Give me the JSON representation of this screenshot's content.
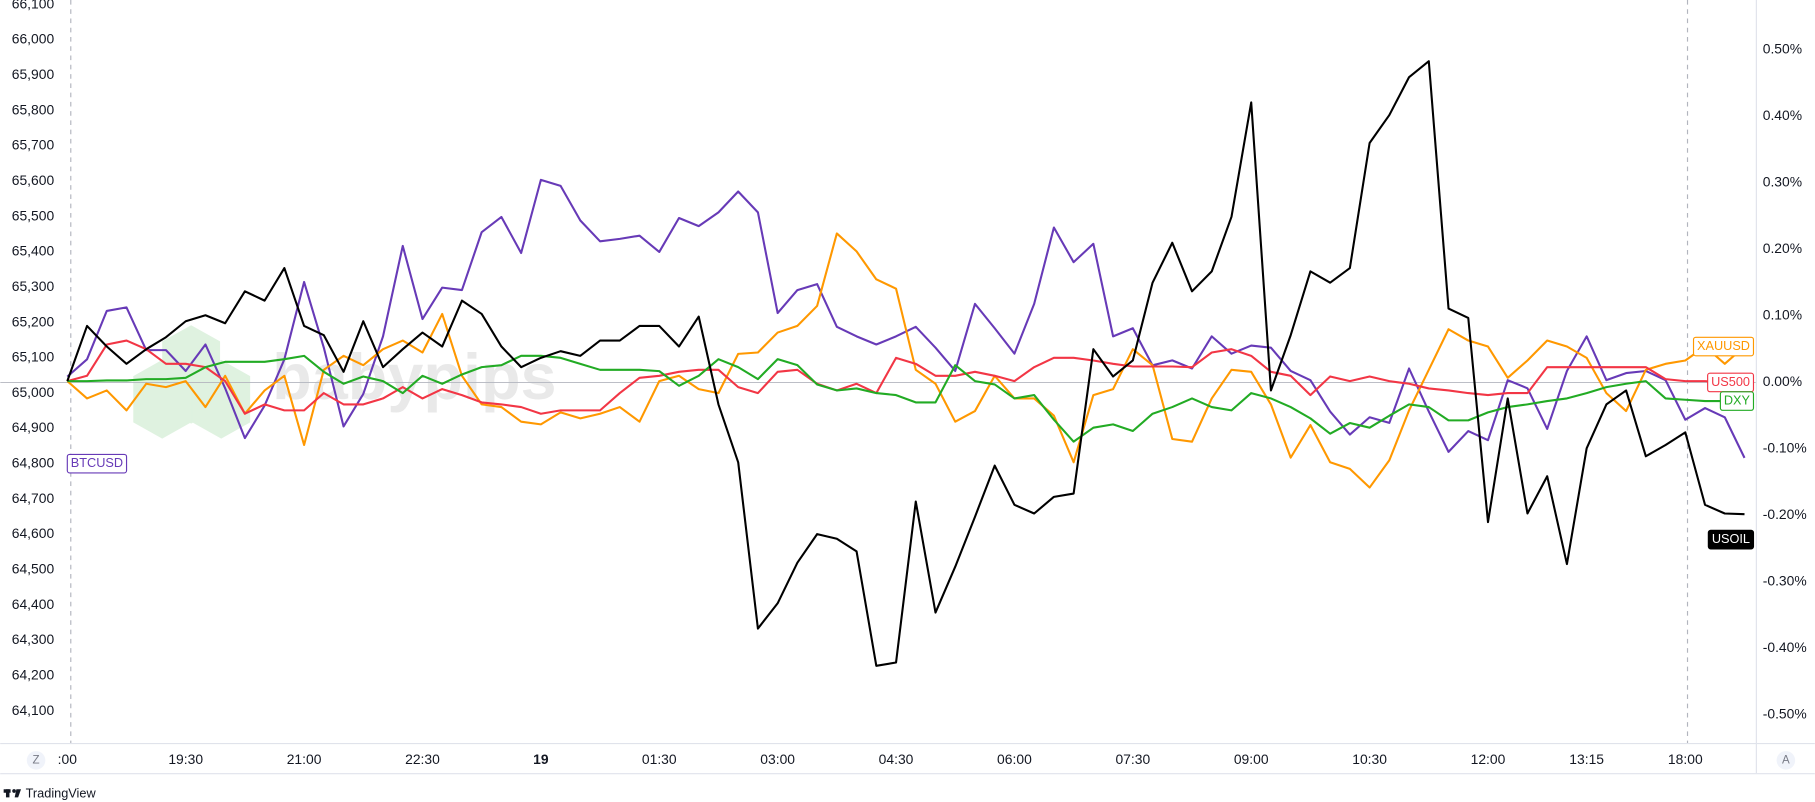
{
  "chart_data": {
    "type": "line",
    "categories": [
      ":00",
      null,
      null,
      null,
      null,
      null,
      "19:30",
      null,
      null,
      null,
      null,
      null,
      "21:00",
      null,
      null,
      null,
      null,
      null,
      "22:30",
      null,
      null,
      null,
      null,
      null,
      "19",
      null,
      null,
      null,
      null,
      null,
      "01:30",
      null,
      null,
      null,
      null,
      null,
      "03:00",
      null,
      null,
      null,
      null,
      null,
      "04:30",
      null,
      null,
      null,
      null,
      null,
      "06:00",
      null,
      null,
      null,
      null,
      null,
      "07:30",
      null,
      null,
      null,
      null,
      null,
      "09:00",
      null,
      null,
      null,
      null,
      null,
      "10:30",
      null,
      null,
      null,
      null,
      null,
      "12:00",
      null,
      null,
      null,
      null,
      "13:15",
      null,
      null,
      null,
      null,
      "18:00",
      null,
      null,
      null
    ],
    "ylim": [
      64010,
      66100
    ],
    "yticks": [
      {
        "value": 64100,
        "label": "64,100"
      },
      {
        "value": 64200,
        "label": "64,200"
      },
      {
        "value": 64300,
        "label": "64,300"
      },
      {
        "value": 64400,
        "label": "64,400"
      },
      {
        "value": 64500,
        "label": "64,500"
      },
      {
        "value": 64600,
        "label": "64,600"
      },
      {
        "value": 64700,
        "label": "64,700"
      },
      {
        "value": 64800,
        "label": "64,800"
      },
      {
        "value": 64900,
        "label": "64,900"
      },
      {
        "value": 65000,
        "label": "65,000"
      },
      {
        "value": 65100,
        "label": "65,100"
      },
      {
        "value": 65200,
        "label": "65,200"
      },
      {
        "value": 65300,
        "label": "65,300"
      },
      {
        "value": 65400,
        "label": "65,400"
      },
      {
        "value": 65500,
        "label": "65,500"
      },
      {
        "value": 65600,
        "label": "65,600"
      },
      {
        "value": 65700,
        "label": "65,700"
      },
      {
        "value": 65800,
        "label": "65,800"
      },
      {
        "value": 65900,
        "label": "65,900"
      },
      {
        "value": 66000,
        "label": "66,000"
      },
      {
        "value": 66100,
        "label": "66,100"
      }
    ],
    "y2lim": [
      -0.542,
      0.568
    ],
    "y2ticks": [
      {
        "value": 0.5,
        "label": "0.50%"
      },
      {
        "value": 0.4,
        "label": "0.40%"
      },
      {
        "value": 0.3,
        "label": "0.30%"
      },
      {
        "value": 0.2,
        "label": "0.20%"
      },
      {
        "value": 0.1,
        "label": "0.10%"
      },
      {
        "value": 0,
        "label": "0.00%"
      },
      {
        "value": -0.1,
        "label": "-0.10%"
      },
      {
        "value": -0.2,
        "label": "-0.20%"
      },
      {
        "value": -0.3,
        "label": "-0.30%"
      },
      {
        "value": -0.4,
        "label": "-0.40%"
      },
      {
        "value": -0.5,
        "label": "-0.50%"
      }
    ],
    "grid": false,
    "series": [
      {
        "name": "BTCUSD",
        "color": "#673ab7",
        "values": [
          65047,
          65096,
          65233,
          65243,
          65122,
          65122,
          65063,
          65138,
          65014,
          64873,
          64965,
          65096,
          65315,
          65129,
          64906,
          64998,
          65161,
          65417,
          65210,
          65299,
          65292,
          65456,
          65499,
          65397,
          65604,
          65587,
          65489,
          65430,
          65437,
          65446,
          65400,
          65496,
          65473,
          65512,
          65571,
          65512,
          65227,
          65292,
          65309,
          65188,
          65161,
          65138,
          65161,
          65188,
          65129,
          65063,
          65253,
          65184,
          65112,
          65253,
          65469,
          65371,
          65423,
          65161,
          65184,
          65079,
          65093,
          65070,
          65161,
          65112,
          65135,
          65129,
          65063,
          65037,
          64948,
          64883,
          64932,
          64916,
          65070,
          64948,
          64834,
          64893,
          64867,
          65037,
          65014,
          64899,
          65063,
          65161,
          65037,
          65057,
          65063,
          65037,
          64925,
          64958,
          64932,
          64817
        ]
      },
      {
        "name": "XAUUSD",
        "color": "#ff9800",
        "axis": "y2",
        "values": [
          0.002,
          -0.024,
          -0.012,
          -0.042,
          -0.002,
          -0.007,
          0.002,
          -0.037,
          0.01,
          -0.047,
          -0.012,
          0.01,
          -0.094,
          0.019,
          0.04,
          0.026,
          0.05,
          0.063,
          0.045,
          0.103,
          0.01,
          -0.033,
          -0.037,
          -0.059,
          -0.063,
          -0.045,
          -0.054,
          -0.047,
          -0.037,
          -0.059,
          0.002,
          0.01,
          -0.01,
          -0.016,
          0.043,
          0.045,
          0.075,
          0.085,
          0.115,
          0.224,
          0.197,
          0.155,
          0.141,
          0.019,
          -0.002,
          -0.059,
          -0.043,
          0.01,
          -0.024,
          -0.024,
          -0.05,
          -0.12,
          -0.019,
          -0.01,
          0.05,
          0.026,
          -0.085,
          -0.089,
          -0.024,
          0.019,
          0.016,
          -0.033,
          -0.113,
          -0.064,
          -0.12,
          -0.13,
          -0.158,
          -0.117,
          -0.042,
          0.019,
          0.08,
          0.063,
          0.054,
          0.007,
          0.033,
          0.063,
          0.054,
          0.037,
          -0.016,
          -0.043,
          0.019,
          0.028,
          0.033,
          0.054,
          0.028,
          0.054
        ]
      },
      {
        "name": "US500",
        "color": "#f23645",
        "axis": "y2",
        "values": [
          0.002,
          0.01,
          0.057,
          0.063,
          0.05,
          0.028,
          0.028,
          0.023,
          0.002,
          -0.047,
          -0.033,
          -0.042,
          -0.042,
          -0.016,
          -0.033,
          -0.033,
          -0.024,
          -0.007,
          -0.024,
          -0.01,
          -0.019,
          -0.03,
          -0.033,
          -0.037,
          -0.047,
          -0.042,
          -0.042,
          -0.042,
          -0.016,
          0.007,
          0.01,
          0.016,
          0.019,
          0.019,
          -0.007,
          -0.016,
          0.016,
          0.019,
          -0.002,
          -0.012,
          -0.002,
          -0.016,
          0.037,
          0.028,
          0.01,
          0.01,
          0.016,
          0.01,
          0.002,
          0.023,
          0.037,
          0.037,
          0.033,
          0.028,
          0.024,
          0.024,
          0.024,
          0.023,
          0.045,
          0.05,
          0.04,
          0.016,
          0.01,
          -0.019,
          0.009,
          0.002,
          0.009,
          0.002,
          -0.002,
          -0.009,
          -0.012,
          -0.016,
          -0.019,
          -0.016,
          -0.016,
          0.023,
          0.023,
          0.023,
          0.023,
          0.023,
          0.023,
          0.005,
          0.002,
          0.002,
          0,
          0
        ]
      },
      {
        "name": "DXY",
        "color": "#22ab24",
        "axis": "y2",
        "values": [
          0.002,
          0.002,
          0.003,
          0.003,
          0.005,
          0.005,
          0.007,
          0.023,
          0.031,
          0.031,
          0.031,
          0.035,
          0.04,
          0.016,
          -0.002,
          0.009,
          0.002,
          -0.016,
          0.01,
          -0.002,
          0.012,
          0.023,
          0.026,
          0.04,
          0.04,
          0.037,
          0.028,
          0.019,
          0.019,
          0.019,
          0.017,
          -0.005,
          0.01,
          0.035,
          0.023,
          0.005,
          0.035,
          0.026,
          -0.003,
          -0.012,
          -0.009,
          -0.016,
          -0.019,
          -0.03,
          -0.03,
          0.026,
          0.002,
          -0.003,
          -0.024,
          -0.019,
          -0.056,
          -0.089,
          -0.068,
          -0.063,
          -0.073,
          -0.047,
          -0.037,
          -0.024,
          -0.037,
          -0.042,
          -0.016,
          -0.024,
          -0.037,
          -0.054,
          -0.077,
          -0.061,
          -0.068,
          -0.05,
          -0.033,
          -0.037,
          -0.057,
          -0.057,
          -0.045,
          -0.037,
          -0.033,
          -0.028,
          -0.024,
          -0.016,
          -0.007,
          -0.002,
          0.002,
          -0.024,
          -0.026,
          -0.028,
          -0.028,
          -0.028
        ]
      },
      {
        "name": "USOIL",
        "color": "#000000",
        "axis": "y2",
        "values": [
          0.002,
          0.085,
          0.054,
          0.028,
          0.05,
          0.068,
          0.092,
          0.101,
          0.089,
          0.137,
          0.123,
          0.172,
          0.085,
          0.071,
          0.016,
          0.092,
          0.023,
          0.05,
          0.075,
          0.054,
          0.123,
          0.103,
          0.054,
          0.023,
          0.037,
          0.047,
          0.04,
          0.063,
          0.063,
          0.085,
          0.085,
          0.054,
          0.099,
          -0.033,
          -0.12,
          -0.37,
          -0.332,
          -0.271,
          -0.228,
          -0.235,
          -0.254,
          -0.426,
          -0.421,
          -0.179,
          -0.346,
          -0.277,
          -0.202,
          -0.125,
          -0.184,
          -0.197,
          -0.172,
          -0.167,
          0.05,
          0.009,
          0.033,
          0.15,
          0.21,
          0.137,
          0.167,
          0.249,
          0.421,
          -0.012,
          0.071,
          0.167,
          0.15,
          0.172,
          0.36,
          0.402,
          0.459,
          0.483,
          0.111,
          0.097,
          -0.21,
          -0.024,
          -0.197,
          -0.141,
          -0.273,
          -0.099,
          -0.033,
          -0.012,
          -0.111,
          -0.094,
          -0.075,
          -0.184,
          -0.197,
          -0.198
        ]
      }
    ],
    "watermark": "babypips",
    "scale_buttons": [
      "Z",
      "A"
    ],
    "footer": "TradingView"
  }
}
